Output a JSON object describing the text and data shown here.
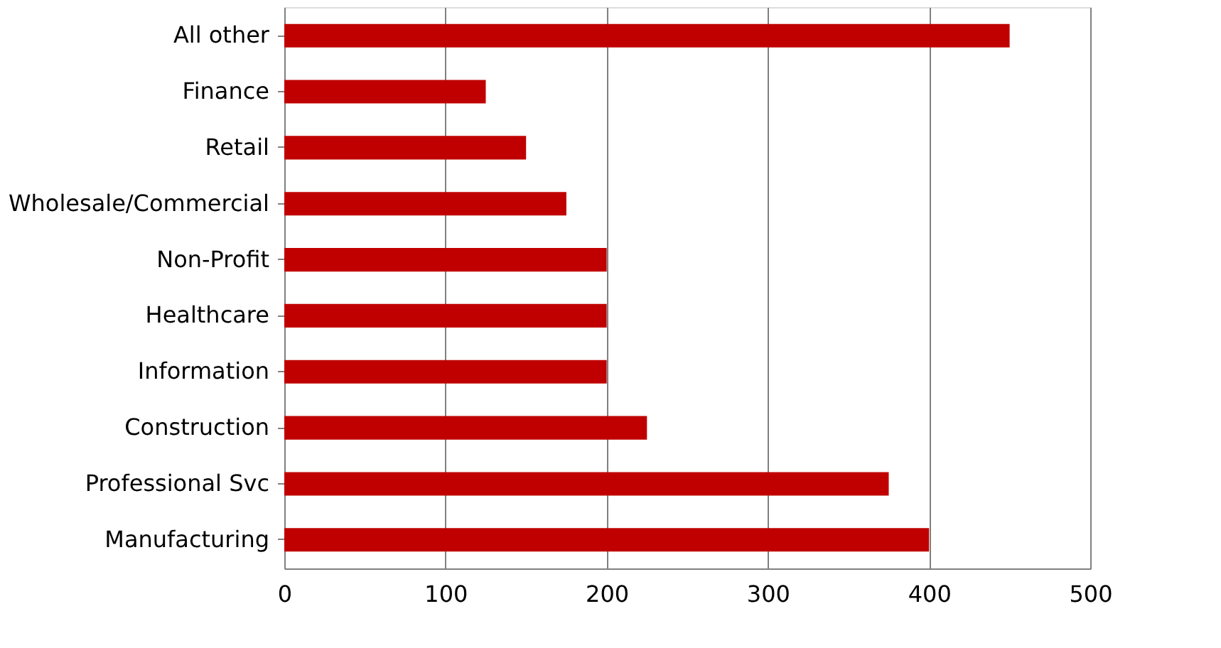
{
  "chart_data": {
    "type": "bar",
    "orientation": "horizontal",
    "categories": [
      "All other",
      "Finance",
      "Retail",
      "Wholesale/Commercial",
      "Non-Profit",
      "Healthcare",
      "Information",
      "Construction",
      "Professional Svc",
      "Manufacturing"
    ],
    "values": [
      450,
      125,
      150,
      175,
      200,
      200,
      200,
      225,
      375,
      400
    ],
    "color": "#c00000",
    "xlim": [
      0,
      500
    ],
    "xticks": [
      0,
      100,
      200,
      300,
      400,
      500
    ],
    "grid": "x"
  }
}
